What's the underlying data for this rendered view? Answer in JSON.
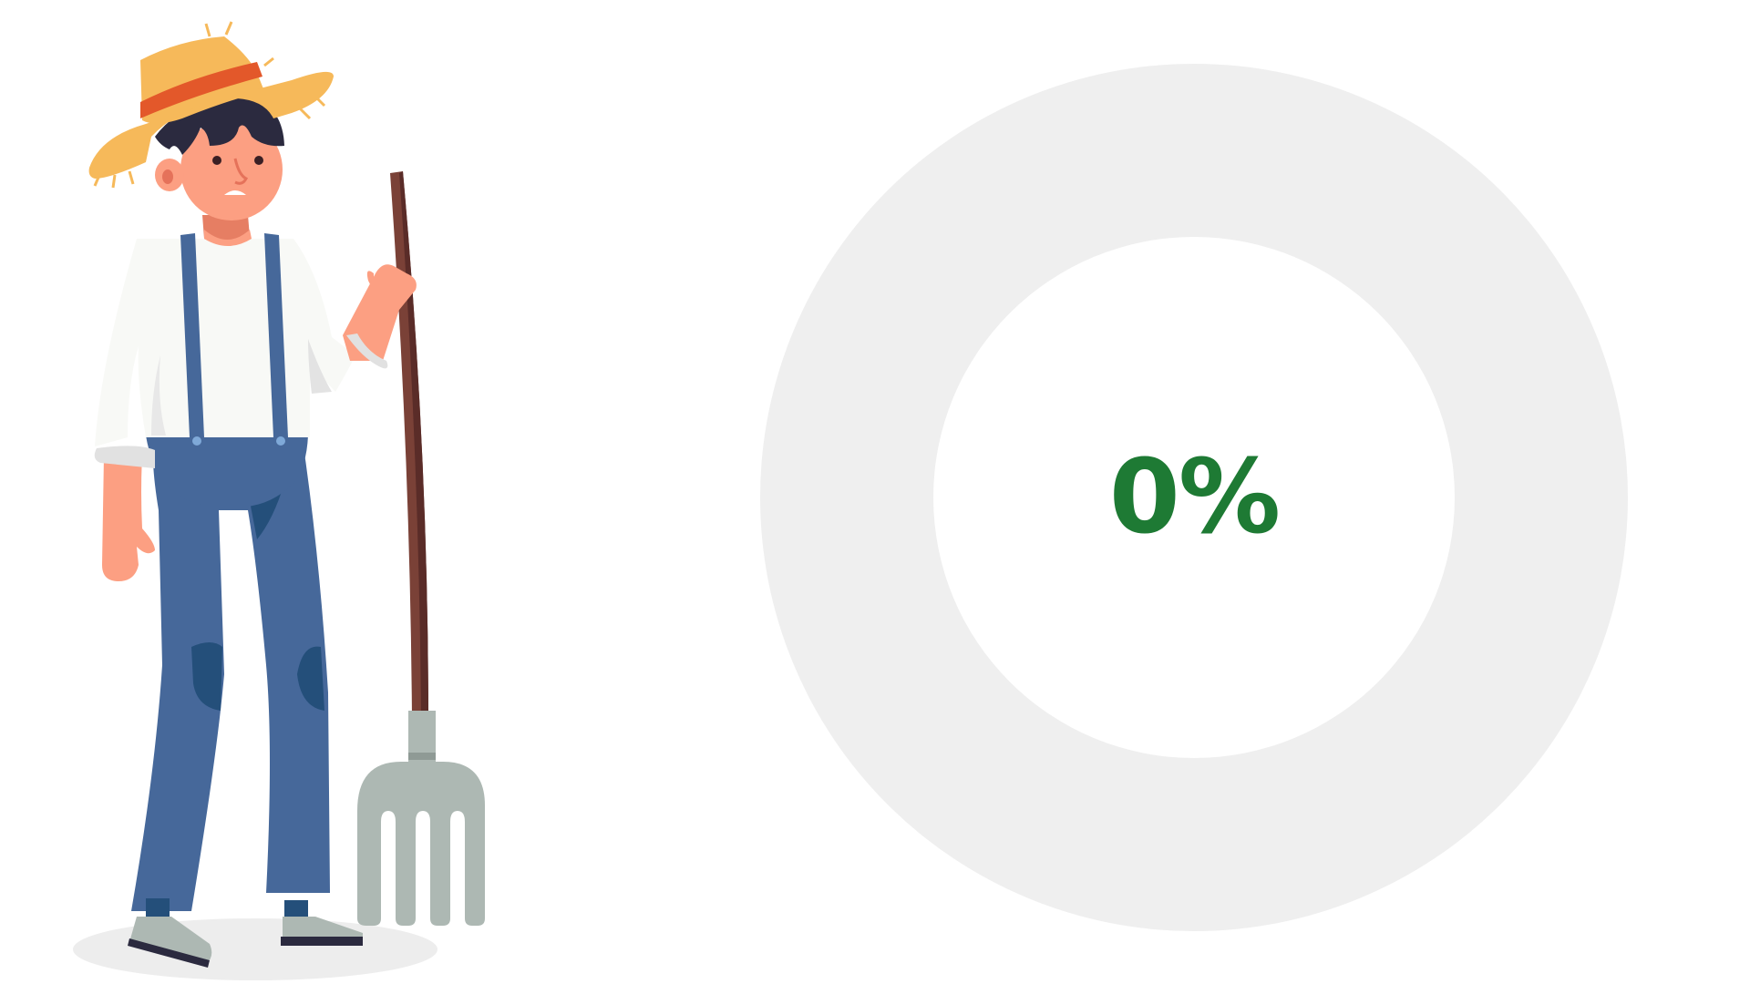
{
  "loader": {
    "progress_percent": 0,
    "progress_label": "0%"
  },
  "illustration": {
    "subject": "farmer-with-pitchfork"
  },
  "colors": {
    "progress_text": "#1e7a34",
    "ring_track": "#efefef",
    "background": "#ffffff",
    "hat": "#f6b95a",
    "hat_band": "#e3582a",
    "overalls": "#46689a",
    "skin": "#fc9f82",
    "pitchfork_handle": "#7a4137",
    "pitchfork_head": "#adb8b3"
  }
}
